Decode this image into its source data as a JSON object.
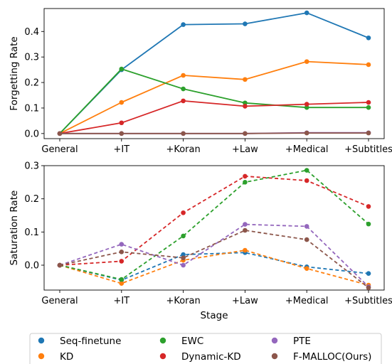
{
  "chart_data": [
    {
      "type": "line",
      "categories": [
        "General",
        "+IT",
        "+Koran",
        "+Law",
        "+Medical",
        "+Subtitles"
      ],
      "xlabel": "",
      "ylabel": "Forgetting Rate",
      "ylim": [
        -0.02,
        0.49
      ],
      "yticks": [
        "0.0",
        "0.1",
        "0.2",
        "0.3",
        "0.4"
      ],
      "line_style": "solid",
      "grid": false,
      "series": [
        {
          "name": "Seq-finetune",
          "color": "#1f77b4",
          "values": [
            0.0,
            0.25,
            0.427,
            0.43,
            0.473,
            0.375
          ]
        },
        {
          "name": "KD",
          "color": "#ff7f0e",
          "values": [
            0.0,
            0.122,
            0.228,
            0.212,
            0.282,
            0.27
          ]
        },
        {
          "name": "EWC",
          "color": "#2ca02c",
          "values": [
            0.0,
            0.253,
            0.175,
            0.12,
            0.102,
            0.102
          ]
        },
        {
          "name": "Dynamic-KD",
          "color": "#d62728",
          "values": [
            0.0,
            0.042,
            0.128,
            0.107,
            0.115,
            0.122
          ]
        },
        {
          "name": "PTE",
          "color": "#9467bd",
          "values": [
            0.0,
            0.0,
            0.0,
            0.0,
            0.003,
            0.003
          ]
        },
        {
          "name": "F-MALLOC(Ours)",
          "color": "#8c564b",
          "values": [
            0.0,
            0.0,
            0.0,
            0.0,
            0.002,
            0.002
          ]
        }
      ]
    },
    {
      "type": "line",
      "categories": [
        "General",
        "+IT",
        "+Koran",
        "+Law",
        "+Medical",
        "+Subtitles"
      ],
      "xlabel": "Stage",
      "ylabel": "Saturation Rate",
      "ylim": [
        -0.075,
        0.3
      ],
      "yticks": [
        "0.0",
        "0.1",
        "0.2",
        "0.3"
      ],
      "line_style": "dashed",
      "grid": false,
      "series": [
        {
          "name": "Seq-finetune",
          "color": "#1f77b4",
          "values": [
            0.0,
            -0.045,
            0.032,
            0.038,
            -0.005,
            -0.025
          ]
        },
        {
          "name": "KD",
          "color": "#ff7f0e",
          "values": [
            0.0,
            -0.055,
            0.015,
            0.045,
            -0.01,
            -0.06
          ]
        },
        {
          "name": "EWC",
          "color": "#2ca02c",
          "values": [
            0.0,
            -0.043,
            0.088,
            0.25,
            0.286,
            0.124
          ]
        },
        {
          "name": "Dynamic-KD",
          "color": "#d62728",
          "values": [
            0.0,
            0.012,
            0.158,
            0.268,
            0.255,
            0.177
          ]
        },
        {
          "name": "PTE",
          "color": "#9467bd",
          "values": [
            0.0,
            0.063,
            0.0,
            0.123,
            0.117,
            -0.065
          ]
        },
        {
          "name": "F-MALLOC(Ours)",
          "color": "#8c564b",
          "values": [
            0.0,
            0.04,
            0.022,
            0.105,
            0.077,
            -0.068
          ]
        }
      ]
    }
  ],
  "legend": {
    "placement": "bottom",
    "entries": [
      {
        "label": "Seq-finetune",
        "color": "#1f77b4"
      },
      {
        "label": "KD",
        "color": "#ff7f0e"
      },
      {
        "label": "EWC",
        "color": "#2ca02c"
      },
      {
        "label": "Dynamic-KD",
        "color": "#d62728"
      },
      {
        "label": "PTE",
        "color": "#9467bd"
      },
      {
        "label": "F-MALLOC(Ours)",
        "color": "#8c564b"
      }
    ]
  }
}
